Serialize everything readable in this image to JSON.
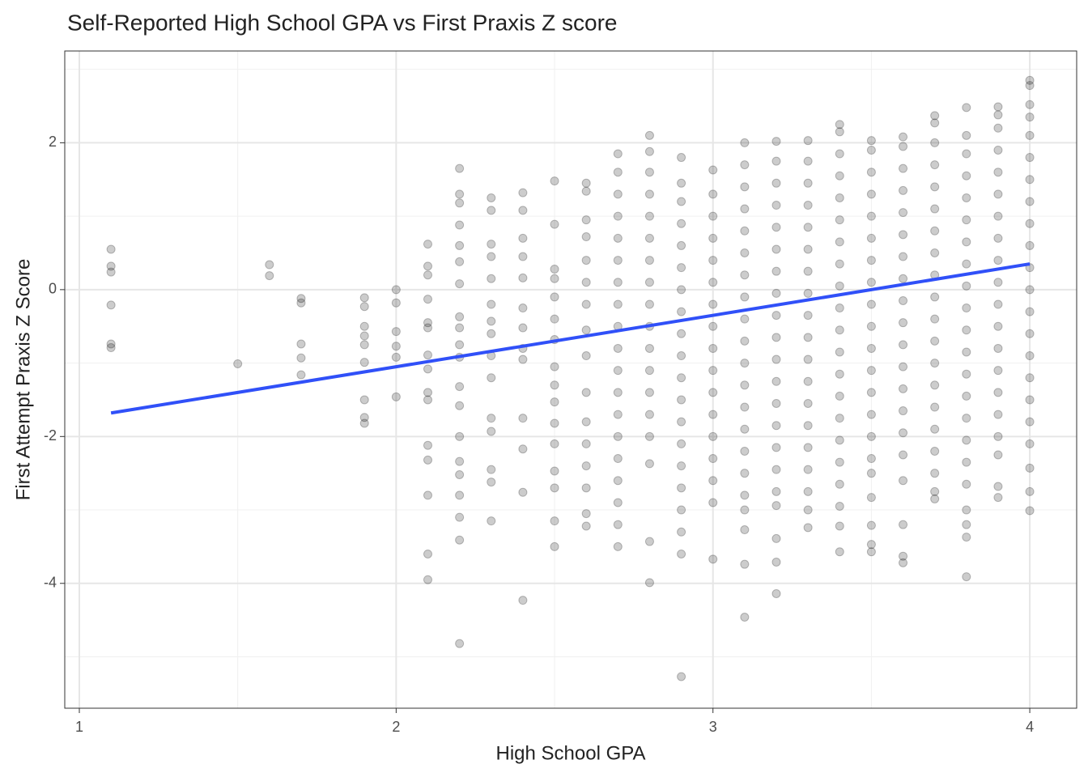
{
  "chart_data": {
    "type": "scatter",
    "title": "Self-Reported High School GPA vs First Praxis Z score",
    "x_label": "High School GPA",
    "y_label": "First Attempt Praxis Z Score",
    "xlim": [
      0.954,
      4.148
    ],
    "ylim": [
      -5.7,
      3.25
    ],
    "xticks": [
      1,
      2,
      3,
      4
    ],
    "yticks": [
      -4,
      -2,
      0,
      2
    ],
    "x_minor_grid": [
      1.5,
      2.5,
      3.5
    ],
    "y_minor_grid": [
      -5,
      -3,
      -1,
      1,
      3
    ],
    "grid": true,
    "point_color": "#000000",
    "points": [
      [
        1.1,
        0.55
      ],
      [
        1.1,
        0.32
      ],
      [
        1.1,
        0.24
      ],
      [
        1.1,
        -0.21
      ],
      [
        1.1,
        -0.74
      ],
      [
        1.1,
        -0.79
      ],
      [
        1.5,
        -1.01
      ],
      [
        1.6,
        0.34
      ],
      [
        1.6,
        0.19
      ],
      [
        1.7,
        -0.12
      ],
      [
        1.7,
        -0.18
      ],
      [
        1.7,
        -0.74
      ],
      [
        1.7,
        -0.93
      ],
      [
        1.7,
        -1.16
      ],
      [
        1.9,
        -0.11
      ],
      [
        1.9,
        -0.23
      ],
      [
        1.9,
        -0.5
      ],
      [
        1.9,
        -0.63
      ],
      [
        1.9,
        -0.75
      ],
      [
        1.9,
        -0.99
      ],
      [
        1.9,
        -1.5
      ],
      [
        1.9,
        -1.74
      ],
      [
        1.9,
        -1.82
      ],
      [
        2.0,
        0.0
      ],
      [
        2.0,
        -0.18
      ],
      [
        2.0,
        -0.57
      ],
      [
        2.0,
        -0.77
      ],
      [
        2.0,
        -0.92
      ],
      [
        2.0,
        -1.46
      ],
      [
        2.1,
        0.62
      ],
      [
        2.1,
        0.32
      ],
      [
        2.1,
        0.2
      ],
      [
        2.1,
        -0.13
      ],
      [
        2.1,
        -0.45
      ],
      [
        2.1,
        -0.52
      ],
      [
        2.1,
        -0.89
      ],
      [
        2.1,
        -1.08
      ],
      [
        2.1,
        -1.4
      ],
      [
        2.1,
        -1.5
      ],
      [
        2.1,
        -2.12
      ],
      [
        2.1,
        -2.32
      ],
      [
        2.1,
        -2.8
      ],
      [
        2.1,
        -3.6
      ],
      [
        2.1,
        -3.95
      ],
      [
        2.2,
        1.65
      ],
      [
        2.2,
        1.3
      ],
      [
        2.2,
        1.18
      ],
      [
        2.2,
        0.88
      ],
      [
        2.2,
        0.6
      ],
      [
        2.2,
        0.38
      ],
      [
        2.2,
        0.08
      ],
      [
        2.2,
        -0.37
      ],
      [
        2.2,
        -0.52
      ],
      [
        2.2,
        -0.75
      ],
      [
        2.2,
        -0.92
      ],
      [
        2.2,
        -1.32
      ],
      [
        2.2,
        -1.58
      ],
      [
        2.2,
        -2.0
      ],
      [
        2.2,
        -2.34
      ],
      [
        2.2,
        -2.52
      ],
      [
        2.2,
        -2.8
      ],
      [
        2.2,
        -3.1
      ],
      [
        2.2,
        -3.41
      ],
      [
        2.2,
        -4.82
      ],
      [
        2.3,
        1.25
      ],
      [
        2.3,
        1.08
      ],
      [
        2.3,
        0.62
      ],
      [
        2.3,
        0.45
      ],
      [
        2.3,
        0.15
      ],
      [
        2.3,
        -0.2
      ],
      [
        2.3,
        -0.43
      ],
      [
        2.3,
        -0.6
      ],
      [
        2.3,
        -0.9
      ],
      [
        2.3,
        -1.2
      ],
      [
        2.3,
        -1.75
      ],
      [
        2.3,
        -1.93
      ],
      [
        2.3,
        -2.45
      ],
      [
        2.3,
        -2.62
      ],
      [
        2.3,
        -3.15
      ],
      [
        2.4,
        1.32
      ],
      [
        2.4,
        1.08
      ],
      [
        2.4,
        0.7
      ],
      [
        2.4,
        0.45
      ],
      [
        2.4,
        0.16
      ],
      [
        2.4,
        -0.25
      ],
      [
        2.4,
        -0.52
      ],
      [
        2.4,
        -0.8
      ],
      [
        2.4,
        -0.95
      ],
      [
        2.4,
        -1.75
      ],
      [
        2.4,
        -2.17
      ],
      [
        2.4,
        -2.76
      ],
      [
        2.4,
        -4.23
      ],
      [
        2.5,
        1.48
      ],
      [
        2.5,
        0.89
      ],
      [
        2.5,
        0.28
      ],
      [
        2.5,
        0.15
      ],
      [
        2.5,
        -0.1
      ],
      [
        2.5,
        -0.4
      ],
      [
        2.5,
        -0.68
      ],
      [
        2.5,
        -1.05
      ],
      [
        2.5,
        -1.3
      ],
      [
        2.5,
        -1.53
      ],
      [
        2.5,
        -1.82
      ],
      [
        2.5,
        -2.1
      ],
      [
        2.5,
        -2.47
      ],
      [
        2.5,
        -2.7
      ],
      [
        2.5,
        -3.15
      ],
      [
        2.5,
        -3.5
      ],
      [
        2.6,
        1.45
      ],
      [
        2.6,
        1.34
      ],
      [
        2.6,
        0.95
      ],
      [
        2.6,
        0.72
      ],
      [
        2.6,
        0.4
      ],
      [
        2.6,
        0.1
      ],
      [
        2.6,
        -0.2
      ],
      [
        2.6,
        -0.55
      ],
      [
        2.6,
        -0.9
      ],
      [
        2.6,
        -1.4
      ],
      [
        2.6,
        -1.8
      ],
      [
        2.6,
        -2.1
      ],
      [
        2.6,
        -2.4
      ],
      [
        2.6,
        -2.7
      ],
      [
        2.6,
        -3.05
      ],
      [
        2.6,
        -3.22
      ],
      [
        2.7,
        1.85
      ],
      [
        2.7,
        1.6
      ],
      [
        2.7,
        1.3
      ],
      [
        2.7,
        1.0
      ],
      [
        2.7,
        0.7
      ],
      [
        2.7,
        0.4
      ],
      [
        2.7,
        0.1
      ],
      [
        2.7,
        -0.2
      ],
      [
        2.7,
        -0.5
      ],
      [
        2.7,
        -0.8
      ],
      [
        2.7,
        -1.1
      ],
      [
        2.7,
        -1.4
      ],
      [
        2.7,
        -1.7
      ],
      [
        2.7,
        -2.0
      ],
      [
        2.7,
        -2.3
      ],
      [
        2.7,
        -2.6
      ],
      [
        2.7,
        -2.9
      ],
      [
        2.7,
        -3.2
      ],
      [
        2.7,
        -3.5
      ],
      [
        2.8,
        2.1
      ],
      [
        2.8,
        1.88
      ],
      [
        2.8,
        1.6
      ],
      [
        2.8,
        1.3
      ],
      [
        2.8,
        1.0
      ],
      [
        2.8,
        0.7
      ],
      [
        2.8,
        0.4
      ],
      [
        2.8,
        0.1
      ],
      [
        2.8,
        -0.2
      ],
      [
        2.8,
        -0.5
      ],
      [
        2.8,
        -0.8
      ],
      [
        2.8,
        -1.1
      ],
      [
        2.8,
        -1.4
      ],
      [
        2.8,
        -1.7
      ],
      [
        2.8,
        -2.0
      ],
      [
        2.8,
        -2.37
      ],
      [
        2.8,
        -3.43
      ],
      [
        2.8,
        -3.99
      ],
      [
        2.9,
        1.8
      ],
      [
        2.9,
        1.45
      ],
      [
        2.9,
        1.2
      ],
      [
        2.9,
        0.9
      ],
      [
        2.9,
        0.6
      ],
      [
        2.9,
        0.3
      ],
      [
        2.9,
        0.0
      ],
      [
        2.9,
        -0.3
      ],
      [
        2.9,
        -0.6
      ],
      [
        2.9,
        -0.9
      ],
      [
        2.9,
        -1.2
      ],
      [
        2.9,
        -1.5
      ],
      [
        2.9,
        -1.8
      ],
      [
        2.9,
        -2.1
      ],
      [
        2.9,
        -2.4
      ],
      [
        2.9,
        -2.7
      ],
      [
        2.9,
        -3.0
      ],
      [
        2.9,
        -3.3
      ],
      [
        2.9,
        -3.6
      ],
      [
        2.9,
        -5.27
      ],
      [
        3.0,
        1.63
      ],
      [
        3.0,
        1.3
      ],
      [
        3.0,
        1.0
      ],
      [
        3.0,
        0.7
      ],
      [
        3.0,
        0.4
      ],
      [
        3.0,
        0.1
      ],
      [
        3.0,
        -0.2
      ],
      [
        3.0,
        -0.5
      ],
      [
        3.0,
        -0.8
      ],
      [
        3.0,
        -1.1
      ],
      [
        3.0,
        -1.4
      ],
      [
        3.0,
        -1.7
      ],
      [
        3.0,
        -2.0
      ],
      [
        3.0,
        -2.3
      ],
      [
        3.0,
        -2.6
      ],
      [
        3.0,
        -2.9
      ],
      [
        3.0,
        -3.67
      ],
      [
        3.1,
        2.0
      ],
      [
        3.1,
        1.7
      ],
      [
        3.1,
        1.4
      ],
      [
        3.1,
        1.1
      ],
      [
        3.1,
        0.8
      ],
      [
        3.1,
        0.5
      ],
      [
        3.1,
        0.2
      ],
      [
        3.1,
        -0.1
      ],
      [
        3.1,
        -0.4
      ],
      [
        3.1,
        -0.7
      ],
      [
        3.1,
        -1.0
      ],
      [
        3.1,
        -1.3
      ],
      [
        3.1,
        -1.6
      ],
      [
        3.1,
        -1.9
      ],
      [
        3.1,
        -2.2
      ],
      [
        3.1,
        -2.5
      ],
      [
        3.1,
        -2.8
      ],
      [
        3.1,
        -3.0
      ],
      [
        3.1,
        -3.27
      ],
      [
        3.1,
        -3.74
      ],
      [
        3.1,
        -4.46
      ],
      [
        3.2,
        2.02
      ],
      [
        3.2,
        1.75
      ],
      [
        3.2,
        1.45
      ],
      [
        3.2,
        1.15
      ],
      [
        3.2,
        0.85
      ],
      [
        3.2,
        0.55
      ],
      [
        3.2,
        0.25
      ],
      [
        3.2,
        -0.05
      ],
      [
        3.2,
        -0.35
      ],
      [
        3.2,
        -0.65
      ],
      [
        3.2,
        -0.95
      ],
      [
        3.2,
        -1.25
      ],
      [
        3.2,
        -1.55
      ],
      [
        3.2,
        -1.85
      ],
      [
        3.2,
        -2.15
      ],
      [
        3.2,
        -2.45
      ],
      [
        3.2,
        -2.75
      ],
      [
        3.2,
        -2.94
      ],
      [
        3.2,
        -3.39
      ],
      [
        3.2,
        -3.71
      ],
      [
        3.2,
        -4.14
      ],
      [
        3.3,
        2.03
      ],
      [
        3.3,
        1.75
      ],
      [
        3.3,
        1.45
      ],
      [
        3.3,
        1.15
      ],
      [
        3.3,
        0.85
      ],
      [
        3.3,
        0.55
      ],
      [
        3.3,
        0.25
      ],
      [
        3.3,
        -0.05
      ],
      [
        3.3,
        -0.35
      ],
      [
        3.3,
        -0.65
      ],
      [
        3.3,
        -0.95
      ],
      [
        3.3,
        -1.25
      ],
      [
        3.3,
        -1.55
      ],
      [
        3.3,
        -1.85
      ],
      [
        3.3,
        -2.15
      ],
      [
        3.3,
        -2.45
      ],
      [
        3.3,
        -2.75
      ],
      [
        3.3,
        -3.0
      ],
      [
        3.3,
        -3.24
      ],
      [
        3.4,
        2.25
      ],
      [
        3.4,
        2.15
      ],
      [
        3.4,
        1.85
      ],
      [
        3.4,
        1.55
      ],
      [
        3.4,
        1.25
      ],
      [
        3.4,
        0.95
      ],
      [
        3.4,
        0.65
      ],
      [
        3.4,
        0.35
      ],
      [
        3.4,
        0.05
      ],
      [
        3.4,
        -0.25
      ],
      [
        3.4,
        -0.55
      ],
      [
        3.4,
        -0.85
      ],
      [
        3.4,
        -1.15
      ],
      [
        3.4,
        -1.45
      ],
      [
        3.4,
        -1.75
      ],
      [
        3.4,
        -2.05
      ],
      [
        3.4,
        -2.35
      ],
      [
        3.4,
        -2.65
      ],
      [
        3.4,
        -2.95
      ],
      [
        3.4,
        -3.22
      ],
      [
        3.4,
        -3.57
      ],
      [
        3.5,
        2.03
      ],
      [
        3.5,
        1.9
      ],
      [
        3.5,
        1.6
      ],
      [
        3.5,
        1.3
      ],
      [
        3.5,
        1.0
      ],
      [
        3.5,
        0.7
      ],
      [
        3.5,
        0.4
      ],
      [
        3.5,
        0.1
      ],
      [
        3.5,
        -0.2
      ],
      [
        3.5,
        -0.5
      ],
      [
        3.5,
        -0.8
      ],
      [
        3.5,
        -1.1
      ],
      [
        3.5,
        -1.4
      ],
      [
        3.5,
        -1.7
      ],
      [
        3.5,
        -2.0
      ],
      [
        3.5,
        -2.3
      ],
      [
        3.5,
        -2.5
      ],
      [
        3.5,
        -2.83
      ],
      [
        3.5,
        -3.21
      ],
      [
        3.5,
        -3.47
      ],
      [
        3.5,
        -3.57
      ],
      [
        3.6,
        2.08
      ],
      [
        3.6,
        1.95
      ],
      [
        3.6,
        1.65
      ],
      [
        3.6,
        1.35
      ],
      [
        3.6,
        1.05
      ],
      [
        3.6,
        0.75
      ],
      [
        3.6,
        0.45
      ],
      [
        3.6,
        0.15
      ],
      [
        3.6,
        -0.15
      ],
      [
        3.6,
        -0.45
      ],
      [
        3.6,
        -0.75
      ],
      [
        3.6,
        -1.05
      ],
      [
        3.6,
        -1.35
      ],
      [
        3.6,
        -1.65
      ],
      [
        3.6,
        -1.95
      ],
      [
        3.6,
        -2.25
      ],
      [
        3.6,
        -2.6
      ],
      [
        3.6,
        -3.2
      ],
      [
        3.6,
        -3.63
      ],
      [
        3.6,
        -3.72
      ],
      [
        3.7,
        2.37
      ],
      [
        3.7,
        2.27
      ],
      [
        3.7,
        2.0
      ],
      [
        3.7,
        1.7
      ],
      [
        3.7,
        1.4
      ],
      [
        3.7,
        1.1
      ],
      [
        3.7,
        0.8
      ],
      [
        3.7,
        0.5
      ],
      [
        3.7,
        0.2
      ],
      [
        3.7,
        -0.1
      ],
      [
        3.7,
        -0.4
      ],
      [
        3.7,
        -0.7
      ],
      [
        3.7,
        -1.0
      ],
      [
        3.7,
        -1.3
      ],
      [
        3.7,
        -1.6
      ],
      [
        3.7,
        -1.9
      ],
      [
        3.7,
        -2.2
      ],
      [
        3.7,
        -2.5
      ],
      [
        3.7,
        -2.75
      ],
      [
        3.7,
        -2.85
      ],
      [
        3.8,
        2.48
      ],
      [
        3.8,
        2.1
      ],
      [
        3.8,
        1.85
      ],
      [
        3.8,
        1.55
      ],
      [
        3.8,
        1.25
      ],
      [
        3.8,
        0.95
      ],
      [
        3.8,
        0.65
      ],
      [
        3.8,
        0.35
      ],
      [
        3.8,
        0.05
      ],
      [
        3.8,
        -0.25
      ],
      [
        3.8,
        -0.55
      ],
      [
        3.8,
        -0.85
      ],
      [
        3.8,
        -1.15
      ],
      [
        3.8,
        -1.45
      ],
      [
        3.8,
        -1.75
      ],
      [
        3.8,
        -2.05
      ],
      [
        3.8,
        -2.35
      ],
      [
        3.8,
        -2.65
      ],
      [
        3.8,
        -3.0
      ],
      [
        3.8,
        -3.2
      ],
      [
        3.8,
        -3.37
      ],
      [
        3.8,
        -3.91
      ],
      [
        3.9,
        2.49
      ],
      [
        3.9,
        2.38
      ],
      [
        3.9,
        2.2
      ],
      [
        3.9,
        1.9
      ],
      [
        3.9,
        1.6
      ],
      [
        3.9,
        1.3
      ],
      [
        3.9,
        1.0
      ],
      [
        3.9,
        0.7
      ],
      [
        3.9,
        0.4
      ],
      [
        3.9,
        0.1
      ],
      [
        3.9,
        -0.2
      ],
      [
        3.9,
        -0.5
      ],
      [
        3.9,
        -0.8
      ],
      [
        3.9,
        -1.1
      ],
      [
        3.9,
        -1.4
      ],
      [
        3.9,
        -1.7
      ],
      [
        3.9,
        -2.0
      ],
      [
        3.9,
        -2.25
      ],
      [
        3.9,
        -2.68
      ],
      [
        3.9,
        -2.83
      ],
      [
        4.0,
        2.85
      ],
      [
        4.0,
        2.78
      ],
      [
        4.0,
        2.52
      ],
      [
        4.0,
        2.35
      ],
      [
        4.0,
        2.1
      ],
      [
        4.0,
        1.8
      ],
      [
        4.0,
        1.5
      ],
      [
        4.0,
        1.2
      ],
      [
        4.0,
        0.9
      ],
      [
        4.0,
        0.6
      ],
      [
        4.0,
        0.3
      ],
      [
        4.0,
        0.0
      ],
      [
        4.0,
        -0.3
      ],
      [
        4.0,
        -0.6
      ],
      [
        4.0,
        -0.9
      ],
      [
        4.0,
        -1.2
      ],
      [
        4.0,
        -1.5
      ],
      [
        4.0,
        -1.8
      ],
      [
        4.0,
        -2.1
      ],
      [
        4.0,
        -2.43
      ],
      [
        4.0,
        -2.75
      ],
      [
        4.0,
        -3.01
      ]
    ],
    "trend": {
      "x": [
        1.1,
        4.0
      ],
      "y": [
        -1.68,
        0.35
      ],
      "color": "#3050f8"
    }
  }
}
